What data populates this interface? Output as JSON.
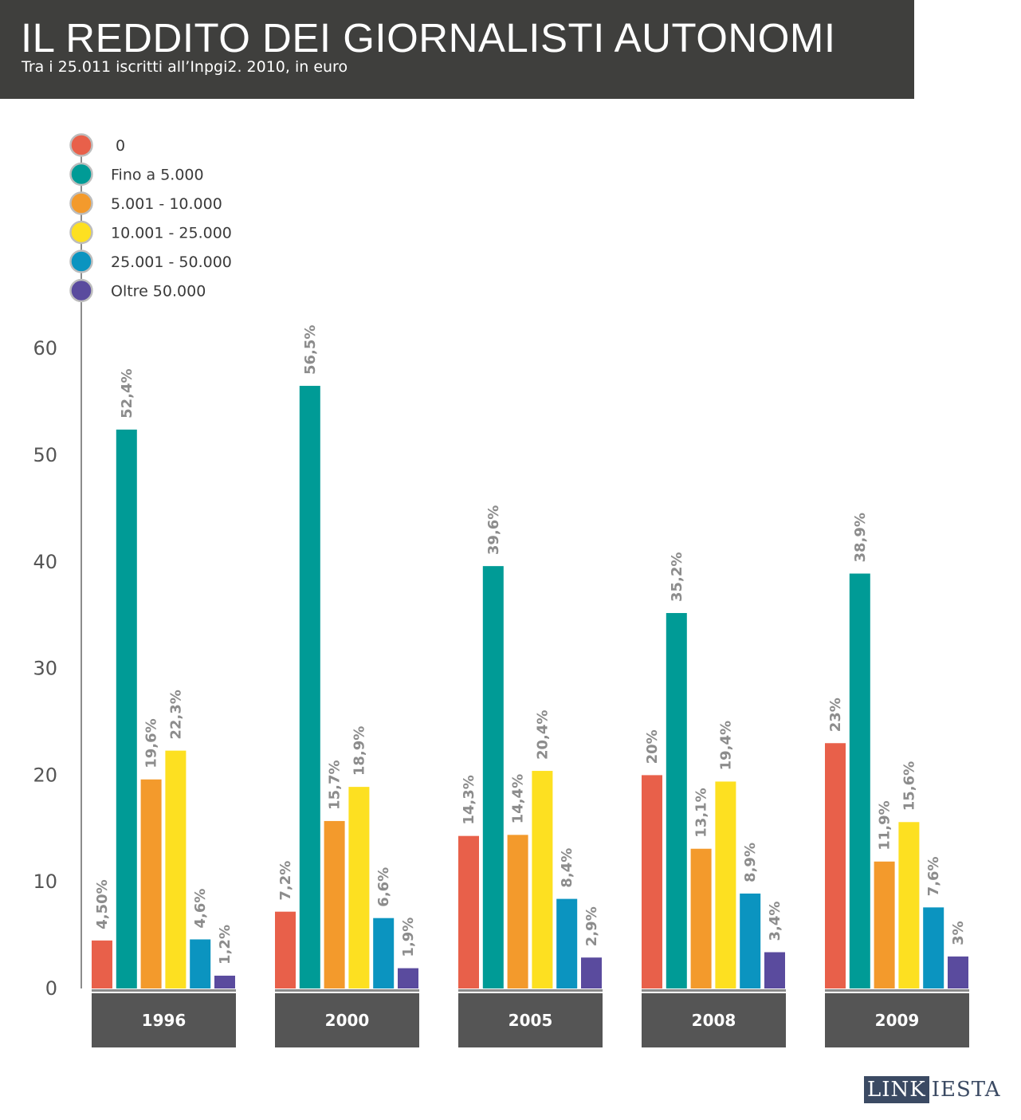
{
  "header": {
    "title": "IL REDDITO DEI GIORNALISTI AUTONOMI",
    "subtitle": "Tra i 25.011 iscritti all’Inpgi2. 2010, in euro"
  },
  "logo": {
    "part1": "LINK",
    "part2": "IESTA"
  },
  "chart_data": {
    "type": "bar",
    "title": "IL REDDITO DEI GIORNALISTI AUTONOMI",
    "subtitle": "Tra i 25.011 iscritti all’Inpgi2. 2010, in euro",
    "categories": [
      "1996",
      "2000",
      "2005",
      "2008",
      "2009"
    ],
    "y_ticks": [
      "0",
      "10",
      "20",
      "30",
      "40",
      "50",
      "60"
    ],
    "ylim": [
      0,
      60
    ],
    "legend_position": "top-left",
    "grid": false,
    "series": [
      {
        "name": "0",
        "color": "#e8604a",
        "values": [
          4.5,
          7.2,
          14.3,
          20,
          23
        ],
        "labels": [
          "4,50%",
          "7,2%",
          "14,3%",
          "20%",
          "23%"
        ]
      },
      {
        "name": "Fino a 5.000",
        "color": "#009b96",
        "values": [
          52.4,
          56.5,
          39.6,
          35.2,
          38.9
        ],
        "labels": [
          "52,4%",
          "56,5%",
          "39,6%",
          "35,2%",
          "38,9%"
        ]
      },
      {
        "name": "5.001 - 10.000",
        "color": "#f39a2c",
        "values": [
          19.6,
          15.7,
          14.4,
          13.1,
          11.9
        ],
        "labels": [
          "19,6%",
          "15,7%",
          "14,4%",
          "13,1%",
          "11,9%"
        ]
      },
      {
        "name": "10.001 - 25.000",
        "color": "#fde021",
        "values": [
          22.3,
          18.9,
          20.4,
          19.4,
          15.6
        ],
        "labels": [
          "22,3%",
          "18,9%",
          "20,4%",
          "19,4%",
          "15,6%"
        ]
      },
      {
        "name": "25.001 - 50.000",
        "color": "#0b94c0",
        "values": [
          4.6,
          6.6,
          8.4,
          8.9,
          7.6
        ],
        "labels": [
          "4,6%",
          "6,6%",
          "8,4%",
          "8,9%",
          "7,6%"
        ]
      },
      {
        "name": "Oltre 50.000",
        "color": "#5a4b9e",
        "values": [
          1.2,
          1.9,
          2.9,
          3.4,
          3
        ],
        "labels": [
          "1,2%",
          "1,9%",
          "2,9%",
          "3,4%",
          "3%"
        ]
      }
    ]
  }
}
